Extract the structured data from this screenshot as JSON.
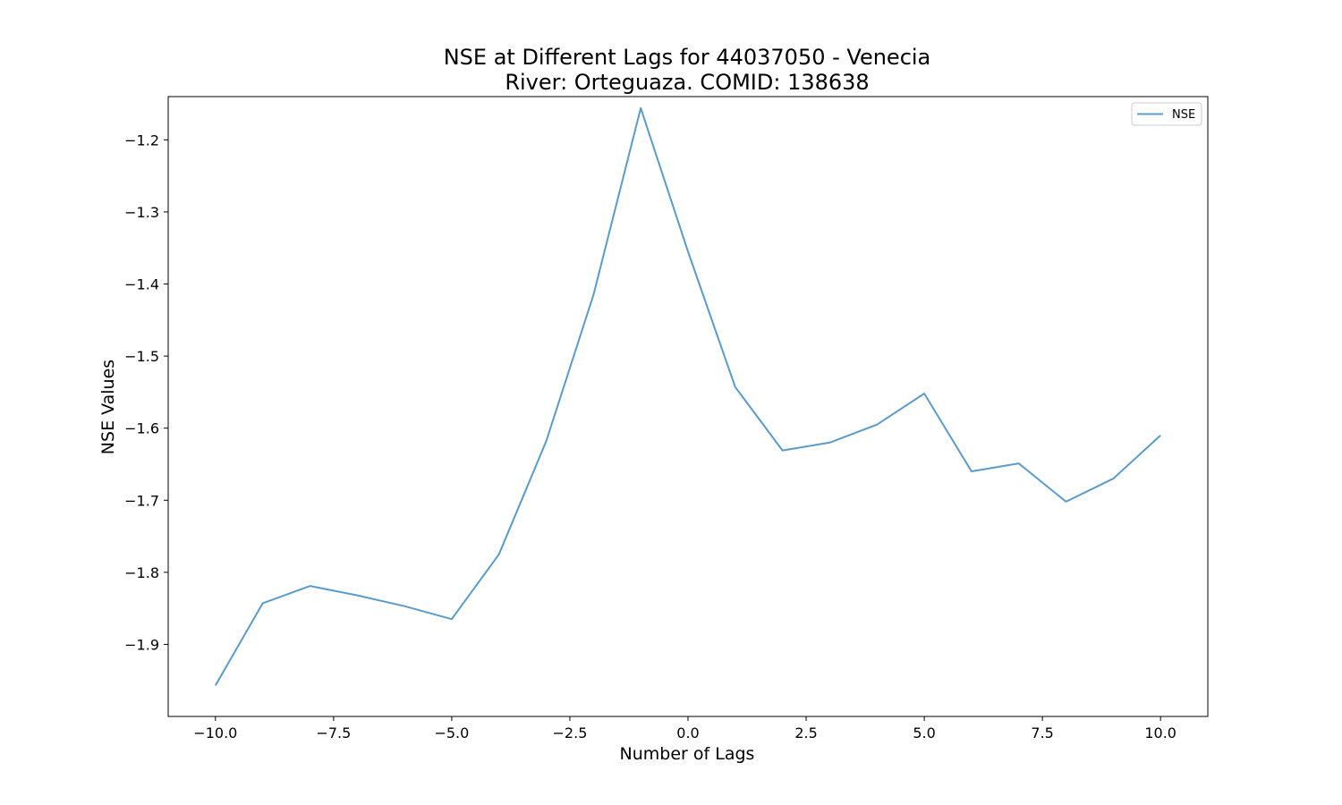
{
  "chart_data": {
    "type": "line",
    "title": "NSE at Different Lags for 44037050 - Venecia",
    "subtitle": "River: Orteguaza. COMID: 138638",
    "xlabel": "Number of Lags",
    "ylabel": "NSE Values",
    "xlim": [
      -11,
      11
    ],
    "ylim": [
      -2.0,
      -1.14
    ],
    "x_ticks": [
      -10.0,
      -7.5,
      -5.0,
      -2.5,
      0.0,
      2.5,
      5.0,
      7.5,
      10.0
    ],
    "x_tick_labels": [
      "−10.0",
      "−7.5",
      "−5.0",
      "−2.5",
      "0.0",
      "2.5",
      "5.0",
      "7.5",
      "10.0"
    ],
    "y_ticks": [
      -1.9,
      -1.8,
      -1.7,
      -1.6,
      -1.5,
      -1.4,
      -1.3,
      -1.2
    ],
    "y_tick_labels": [
      "−1.9",
      "−1.8",
      "−1.7",
      "−1.6",
      "−1.5",
      "−1.4",
      "−1.3",
      "−1.2"
    ],
    "grid": false,
    "legend": {
      "position": "top-right"
    },
    "series": [
      {
        "name": "NSE",
        "color": "#5b9bc8",
        "x": [
          -10,
          -9,
          -8,
          -7,
          -6,
          -5,
          -4,
          -3,
          -2,
          -1,
          0,
          1,
          2,
          3,
          4,
          5,
          6,
          7,
          8,
          9,
          10
        ],
        "y": [
          -1.957,
          -1.843,
          -1.819,
          -1.832,
          -1.847,
          -1.865,
          -1.775,
          -1.618,
          -1.415,
          -1.156,
          -1.355,
          -1.543,
          -1.631,
          -1.62,
          -1.595,
          -1.552,
          -1.66,
          -1.649,
          -1.702,
          -1.67,
          -1.61
        ]
      }
    ]
  }
}
